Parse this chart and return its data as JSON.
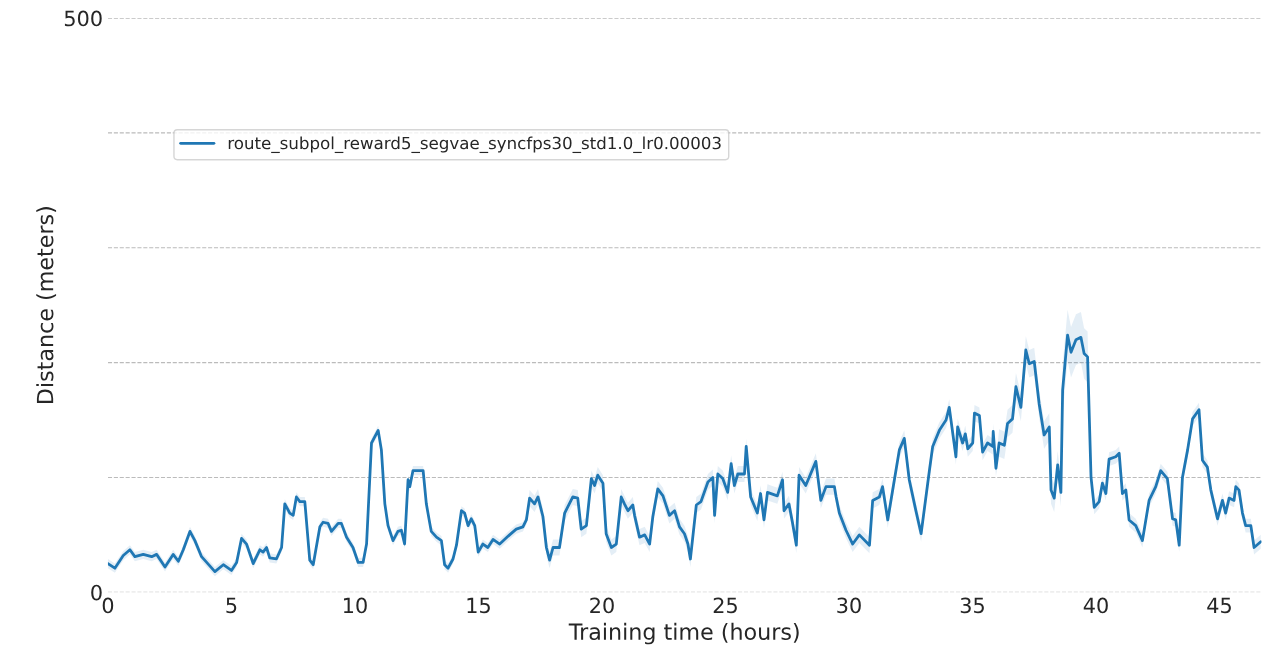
{
  "chart_data": {
    "type": "line",
    "xlabel": "Training time (hours)",
    "ylabel": "Distance (meters)",
    "x": [
      0,
      0.28,
      0.62,
      0.89,
      1.09,
      1.43,
      1.77,
      1.97,
      2.31,
      2.64,
      2.85,
      3.05,
      3.32,
      3.52,
      3.79,
      4.33,
      4.67,
      5.0,
      5.21,
      5.41,
      5.61,
      5.88,
      6.15,
      6.28,
      6.42,
      6.55,
      6.82,
      7.03,
      7.16,
      7.36,
      7.5,
      7.63,
      7.77,
      7.97,
      8.17,
      8.31,
      8.58,
      8.71,
      8.91,
      9.05,
      9.32,
      9.45,
      9.66,
      9.92,
      10.13,
      10.33,
      10.47,
      10.67,
      10.94,
      11.07,
      11.21,
      11.34,
      11.54,
      11.74,
      11.88,
      12.01,
      12.15,
      12.22,
      12.35,
      12.76,
      12.89,
      13.03,
      13.09,
      13.3,
      13.5,
      13.63,
      13.77,
      13.97,
      14.11,
      14.31,
      14.44,
      14.58,
      14.71,
      14.85,
      14.99,
      15.18,
      15.38,
      15.59,
      15.86,
      16.26,
      16.53,
      16.8,
      16.94,
      17.07,
      17.27,
      17.41,
      17.61,
      17.75,
      17.88,
      18.02,
      18.28,
      18.49,
      18.82,
      19.02,
      19.16,
      19.37,
      19.57,
      19.7,
      19.83,
      20.04,
      20.17,
      20.38,
      20.58,
      20.78,
      20.91,
      21.05,
      21.25,
      21.32,
      21.52,
      21.73,
      21.93,
      22.06,
      22.26,
      22.47,
      22.73,
      22.94,
      23.14,
      23.34,
      23.48,
      23.58,
      23.82,
      24.01,
      24.29,
      24.49,
      24.56,
      24.69,
      24.89,
      25.09,
      25.23,
      25.36,
      25.5,
      25.77,
      25.84,
      26.02,
      26.29,
      26.42,
      26.56,
      26.7,
      27.1,
      27.31,
      27.37,
      27.57,
      27.71,
      27.87,
      27.98,
      28.25,
      28.66,
      28.86,
      29.07,
      29.41,
      29.48,
      29.61,
      29.88,
      30.15,
      30.42,
      30.83,
      30.96,
      31.23,
      31.36,
      31.57,
      31.77,
      32.04,
      32.24,
      32.44,
      32.71,
      32.92,
      33.25,
      33.39,
      33.66,
      33.93,
      34.06,
      34.33,
      34.4,
      34.6,
      34.71,
      34.81,
      35.01,
      35.08,
      35.28,
      35.41,
      35.61,
      35.82,
      35.84,
      35.95,
      36.08,
      36.29,
      36.42,
      36.62,
      36.76,
      36.96,
      37.16,
      37.3,
      37.5,
      37.7,
      37.9,
      38.11,
      38.18,
      38.31,
      38.45,
      38.58,
      38.65,
      38.85,
      38.99,
      39.19,
      39.39,
      39.52,
      39.66,
      39.8,
      39.93,
      40.13,
      40.26,
      40.4,
      40.53,
      40.8,
      40.94,
      41.07,
      41.21,
      41.34,
      41.61,
      41.88,
      42.15,
      42.42,
      42.62,
      42.89,
      43.1,
      43.23,
      43.37,
      43.5,
      43.71,
      43.91,
      44.17,
      44.31,
      44.51,
      44.65,
      44.92,
      45.12,
      45.25,
      45.39,
      45.59,
      45.66,
      45.79,
      45.93,
      46.06,
      46.27,
      46.4,
      46.67
    ],
    "series": [
      {
        "name": "route_subpol_reward5_segvae_syncfps30_std1.0_lr0.00003",
        "color": "#1f77b4",
        "values": [
          25,
          21,
          32,
          37,
          31,
          33,
          31,
          33,
          22,
          33,
          27,
          37,
          53,
          45,
          31,
          18,
          24,
          19,
          26,
          47,
          42,
          25,
          37,
          35,
          39,
          30,
          29,
          39,
          77,
          69,
          67,
          83,
          79,
          79,
          28,
          24,
          57,
          61,
          60,
          53,
          60,
          60,
          48,
          39,
          26,
          26,
          42,
          130,
          141,
          124,
          77,
          58,
          45,
          53,
          54,
          42,
          98,
          92,
          106,
          106,
          77,
          60,
          53,
          48,
          45,
          24,
          21,
          29,
          41,
          71,
          69,
          58,
          64,
          58,
          35,
          42,
          39,
          46,
          42,
          50,
          55,
          57,
          63,
          82,
          77,
          83,
          66,
          39,
          28,
          39,
          39,
          69,
          83,
          82,
          55,
          58,
          99,
          93,
          102,
          95,
          51,
          39,
          42,
          83,
          77,
          71,
          76,
          67,
          48,
          50,
          42,
          66,
          90,
          84,
          67,
          71,
          57,
          51,
          42,
          29,
          76,
          79,
          96,
          100,
          67,
          103,
          99,
          87,
          112,
          93,
          103,
          103,
          127,
          83,
          69,
          86,
          63,
          87,
          84,
          98,
          71,
          77,
          61,
          41,
          102,
          93,
          114,
          80,
          92,
          92,
          83,
          69,
          54,
          42,
          50,
          41,
          80,
          83,
          92,
          63,
          89,
          124,
          134,
          98,
          71,
          51,
          105,
          127,
          141,
          150,
          161,
          118,
          144,
          130,
          138,
          125,
          130,
          156,
          154,
          122,
          130,
          127,
          140,
          108,
          130,
          128,
          147,
          151,
          179,
          161,
          211,
          199,
          201,
          164,
          137,
          144,
          89,
          82,
          111,
          87,
          176,
          224,
          209,
          220,
          222,
          208,
          205,
          100,
          74,
          79,
          95,
          86,
          116,
          118,
          121,
          86,
          89,
          63,
          58,
          45,
          80,
          92,
          106,
          99,
          64,
          63,
          41,
          100,
          124,
          151,
          159,
          115,
          109,
          89,
          64,
          80,
          69,
          82,
          80,
          92,
          89,
          69,
          58,
          58,
          39,
          44
        ],
        "lower": [
          21,
          17,
          28,
          33,
          27,
          29,
          27,
          29,
          18,
          29,
          23,
          33,
          49,
          41,
          27,
          14,
          20,
          15,
          22,
          43,
          38,
          21,
          33,
          31,
          35,
          26,
          25,
          35,
          73,
          65,
          63,
          79,
          75,
          75,
          24,
          20,
          53,
          57,
          56,
          49,
          56,
          56,
          44,
          35,
          22,
          22,
          38,
          126,
          137,
          120,
          73,
          54,
          41,
          49,
          50,
          38,
          94,
          88,
          102,
          102,
          73,
          56,
          49,
          44,
          41,
          20,
          17,
          25,
          37,
          67,
          65,
          54,
          60,
          54,
          31,
          38,
          35,
          42,
          38,
          46,
          51,
          53,
          59,
          75,
          70,
          76,
          59,
          32,
          21,
          32,
          32,
          62,
          76,
          75,
          48,
          51,
          92,
          86,
          95,
          88,
          44,
          32,
          35,
          76,
          70,
          64,
          69,
          60,
          41,
          43,
          35,
          59,
          83,
          77,
          60,
          64,
          50,
          44,
          35,
          22,
          69,
          72,
          89,
          93,
          60,
          96,
          92,
          80,
          105,
          86,
          96,
          96,
          120,
          76,
          62,
          79,
          56,
          80,
          77,
          91,
          64,
          70,
          54,
          34,
          95,
          86,
          107,
          73,
          85,
          85,
          76,
          62,
          47,
          35,
          43,
          34,
          73,
          76,
          85,
          56,
          82,
          117,
          127,
          91,
          64,
          44,
          98,
          120,
          134,
          143,
          154,
          111,
          137,
          123,
          131,
          118,
          123,
          149,
          147,
          115,
          123,
          120,
          133,
          101,
          118,
          116,
          135,
          139,
          167,
          149,
          199,
          187,
          189,
          152,
          125,
          132,
          77,
          70,
          99,
          75,
          154,
          202,
          187,
          198,
          200,
          186,
          183,
          94,
          68,
          73,
          89,
          80,
          110,
          112,
          115,
          80,
          83,
          57,
          52,
          39,
          74,
          86,
          100,
          93,
          58,
          57,
          35,
          94,
          118,
          145,
          153,
          109,
          103,
          83,
          58,
          74,
          63,
          76,
          74,
          86,
          83,
          63,
          52,
          52,
          33,
          38
        ],
        "upper": [
          29,
          25,
          36,
          41,
          35,
          37,
          35,
          37,
          26,
          37,
          31,
          41,
          57,
          49,
          35,
          22,
          28,
          23,
          30,
          51,
          46,
          29,
          41,
          39,
          43,
          34,
          33,
          43,
          81,
          73,
          71,
          87,
          83,
          83,
          32,
          28,
          61,
          65,
          64,
          57,
          64,
          64,
          52,
          43,
          30,
          30,
          46,
          134,
          145,
          128,
          81,
          62,
          49,
          57,
          58,
          46,
          102,
          96,
          110,
          110,
          81,
          64,
          57,
          52,
          49,
          28,
          25,
          33,
          45,
          75,
          73,
          62,
          68,
          62,
          39,
          46,
          43,
          50,
          46,
          54,
          59,
          61,
          67,
          89,
          84,
          90,
          73,
          46,
          35,
          46,
          46,
          76,
          90,
          89,
          62,
          65,
          106,
          100,
          109,
          102,
          58,
          46,
          49,
          90,
          84,
          78,
          83,
          74,
          55,
          57,
          49,
          73,
          97,
          91,
          74,
          78,
          64,
          58,
          49,
          36,
          83,
          86,
          103,
          107,
          74,
          110,
          106,
          94,
          119,
          100,
          110,
          110,
          134,
          90,
          76,
          93,
          70,
          94,
          91,
          105,
          78,
          84,
          68,
          48,
          109,
          100,
          121,
          87,
          99,
          99,
          90,
          76,
          61,
          49,
          57,
          48,
          87,
          90,
          99,
          70,
          96,
          131,
          141,
          105,
          78,
          58,
          112,
          134,
          148,
          157,
          168,
          125,
          151,
          137,
          145,
          132,
          137,
          163,
          161,
          129,
          137,
          134,
          147,
          115,
          142,
          140,
          159,
          163,
          191,
          173,
          223,
          211,
          213,
          176,
          149,
          156,
          101,
          94,
          123,
          99,
          198,
          246,
          231,
          242,
          244,
          230,
          227,
          106,
          80,
          85,
          101,
          92,
          122,
          124,
          127,
          92,
          95,
          69,
          64,
          51,
          86,
          98,
          112,
          105,
          70,
          69,
          47,
          106,
          130,
          157,
          165,
          121,
          115,
          95,
          70,
          86,
          75,
          88,
          86,
          98,
          95,
          75,
          64,
          64,
          45,
          50
        ]
      }
    ],
    "xlim": [
      0,
      46.7
    ],
    "xticks": [
      0,
      5,
      10,
      15,
      20,
      25,
      30,
      35,
      40,
      45
    ],
    "ylim": [
      0,
      500
    ],
    "yticks": [
      0,
      {
        "value": 100,
        "label": null
      },
      {
        "value": 200,
        "label": null
      },
      {
        "value": 300,
        "label": null
      },
      {
        "value": 400,
        "label": null
      },
      500
    ],
    "grid": "y",
    "legend": "top left",
    "line_style": "solid"
  }
}
